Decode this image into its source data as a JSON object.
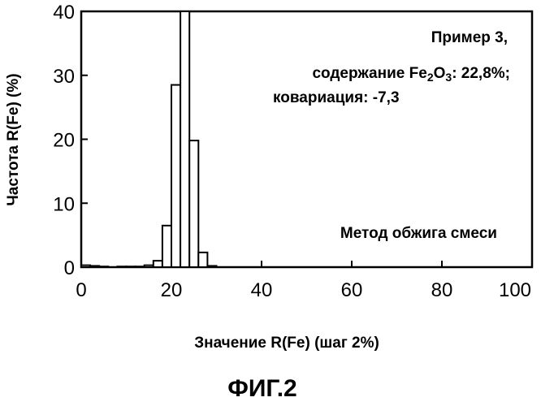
{
  "chart_data": {
    "type": "bar",
    "xlabel": "Значение R(Fe) (шаг 2%)",
    "ylabel": "Частота R(Fe) (%)",
    "xlim": [
      0,
      100
    ],
    "ylim": [
      0,
      40
    ],
    "x_ticks": [
      0,
      20,
      40,
      60,
      80,
      100
    ],
    "y_ticks": [
      0,
      10,
      20,
      30,
      40
    ],
    "bin_width": 2,
    "grid": false,
    "bins": [
      {
        "x": 0,
        "value": 0.3
      },
      {
        "x": 2,
        "value": 0.2
      },
      {
        "x": 4,
        "value": 0.1
      },
      {
        "x": 8,
        "value": 0.1
      },
      {
        "x": 10,
        "value": 0.1
      },
      {
        "x": 12,
        "value": 0.1
      },
      {
        "x": 14,
        "value": 0.3
      },
      {
        "x": 16,
        "value": 1.0
      },
      {
        "x": 18,
        "value": 6.5
      },
      {
        "x": 20,
        "value": 28.5
      },
      {
        "x": 22,
        "value": 40
      },
      {
        "x": 24,
        "value": 19.8
      },
      {
        "x": 26,
        "value": 2.3
      },
      {
        "x": 28,
        "value": 0.2
      }
    ],
    "annotations": {
      "example": "Пример 3,",
      "content_prefix": "содержание Fe",
      "content_sub1": "2",
      "content_mid": "O",
      "content_sub2": "3",
      "content_suffix": ": 22,8%;",
      "covariation": "ковариация: -7,3",
      "method": "Метод обжига смеси"
    }
  },
  "caption": "ФИГ.2"
}
